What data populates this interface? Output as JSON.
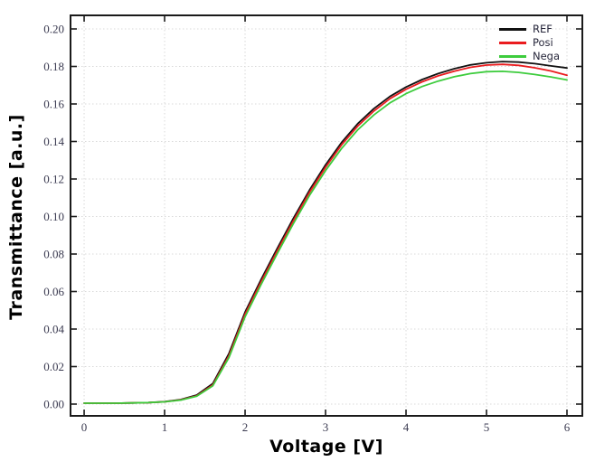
{
  "style": {
    "figure_bg": "#ffffff",
    "frame_color": "#1a1a1a",
    "grid_color": "#d9d9d9",
    "tick_label_color": "#3a3a50",
    "axis_title_color": "#000000",
    "legend_text_color": "#26263a"
  },
  "chart_data": {
    "type": "line",
    "title": "",
    "xlabel": "Voltage [V]",
    "ylabel": "Transmittance [a.u.]",
    "xlim": [
      -0.169,
      6.191
    ],
    "ylim": [
      -0.00627,
      0.20723
    ],
    "x_ticks": [
      0,
      1,
      2,
      3,
      4,
      5,
      6
    ],
    "y_ticks": [
      0.0,
      0.02,
      0.04,
      0.06,
      0.08,
      0.1,
      0.12,
      0.14,
      0.16,
      0.18,
      0.2
    ],
    "grid": true,
    "legend_position": "top-right",
    "x": [
      0.0,
      0.2,
      0.4,
      0.6,
      0.8,
      1.0,
      1.2,
      1.4,
      1.6,
      1.8,
      2.0,
      2.2,
      2.4,
      2.6,
      2.8,
      3.0,
      3.2,
      3.4,
      3.6,
      3.8,
      4.0,
      4.2,
      4.4,
      4.6,
      4.8,
      5.0,
      5.2,
      5.4,
      5.6,
      5.8,
      6.0
    ],
    "series": [
      {
        "name": "REF",
        "color": "#111111",
        "values": [
          0.0005,
          0.0005,
          0.0005,
          0.0006,
          0.0008,
          0.0013,
          0.0024,
          0.0048,
          0.011,
          0.027,
          0.049,
          0.0665,
          0.083,
          0.099,
          0.114,
          0.1275,
          0.1395,
          0.1495,
          0.1575,
          0.164,
          0.169,
          0.173,
          0.1762,
          0.1788,
          0.1808,
          0.182,
          0.1826,
          0.1823,
          0.1815,
          0.1803,
          0.1792
        ]
      },
      {
        "name": "Posi",
        "color": "#ea1c1f",
        "values": [
          0.0005,
          0.0005,
          0.0005,
          0.0006,
          0.0008,
          0.0012,
          0.0022,
          0.0044,
          0.0102,
          0.0258,
          0.0478,
          0.0652,
          0.0817,
          0.0977,
          0.1128,
          0.1262,
          0.1382,
          0.1482,
          0.1562,
          0.1628,
          0.1678,
          0.1718,
          0.175,
          0.1775,
          0.1795,
          0.1807,
          0.1811,
          0.1806,
          0.1793,
          0.1776,
          0.1753
        ]
      },
      {
        "name": "Nega",
        "color": "#3dcc3d",
        "values": [
          0.0005,
          0.0005,
          0.0005,
          0.0006,
          0.0008,
          0.0012,
          0.0021,
          0.0042,
          0.0098,
          0.0248,
          0.0465,
          0.0638,
          0.0802,
          0.0962,
          0.1112,
          0.1245,
          0.1363,
          0.1462,
          0.1541,
          0.1606,
          0.1655,
          0.1693,
          0.1722,
          0.1745,
          0.1762,
          0.1772,
          0.1774,
          0.1768,
          0.1757,
          0.1744,
          0.1728
        ]
      }
    ]
  }
}
